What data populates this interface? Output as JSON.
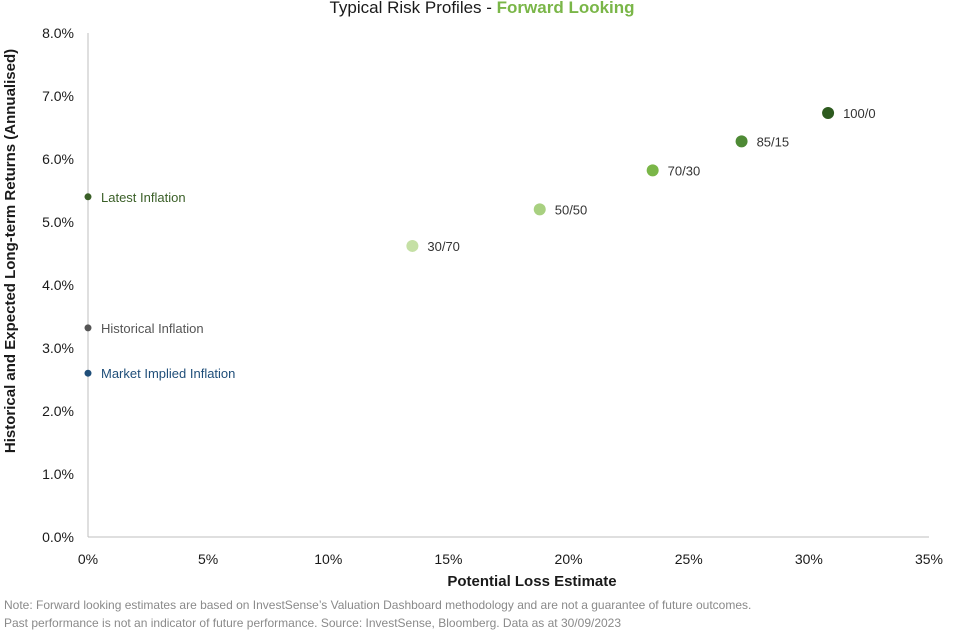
{
  "chart_data": {
    "type": "scatter",
    "title": "Typical Risk Profiles - ",
    "title_highlight": "Forward Looking",
    "xlabel": "Potential Loss Estimate",
    "ylabel": "Historical and Expected Long-term Returns (Annualised)",
    "xlim": [
      0,
      35
    ],
    "ylim": [
      0,
      8
    ],
    "x_ticks": [
      0,
      5,
      10,
      15,
      20,
      25,
      30,
      35
    ],
    "x_tick_labels": [
      "0%",
      "5%",
      "10%",
      "15%",
      "20%",
      "25%",
      "30%",
      "35%"
    ],
    "y_ticks": [
      0,
      1,
      2,
      3,
      4,
      5,
      6,
      7,
      8
    ],
    "y_tick_labels": [
      "0.0%",
      "1.0%",
      "2.0%",
      "3.0%",
      "4.0%",
      "5.0%",
      "6.0%",
      "7.0%",
      "8.0%"
    ],
    "grid": false,
    "points": [
      {
        "label": "30/70",
        "x": 13.5,
        "y": 4.62,
        "color": "#c5e0a5",
        "size": "large"
      },
      {
        "label": "50/50",
        "x": 18.8,
        "y": 5.2,
        "color": "#a8d080",
        "size": "large"
      },
      {
        "label": "70/30",
        "x": 23.5,
        "y": 5.82,
        "color": "#7ab648",
        "size": "large"
      },
      {
        "label": "85/15",
        "x": 27.2,
        "y": 6.28,
        "color": "#4e8a35",
        "size": "large"
      },
      {
        "label": "100/0",
        "x": 30.8,
        "y": 6.73,
        "color": "#2d5a1e",
        "size": "large"
      },
      {
        "label": "Latest Inflation",
        "x": 0,
        "y": 5.4,
        "color": "#3a5f27",
        "size": "small"
      },
      {
        "label": "Historical Inflation",
        "x": 0,
        "y": 3.32,
        "color": "#555555",
        "size": "small"
      },
      {
        "label": "Market Implied Inflation",
        "x": 0,
        "y": 2.6,
        "color": "#1f4e79",
        "size": "small"
      }
    ]
  },
  "notes": [
    "Note: Forward looking estimates are based on InvestSense’s Valuation Dashboard methodology and are not a guarantee of future outcomes.",
    "Past performance is not an indicator of future performance.  Source: InvestSense, Bloomberg. Data as at  30/09/2023"
  ]
}
